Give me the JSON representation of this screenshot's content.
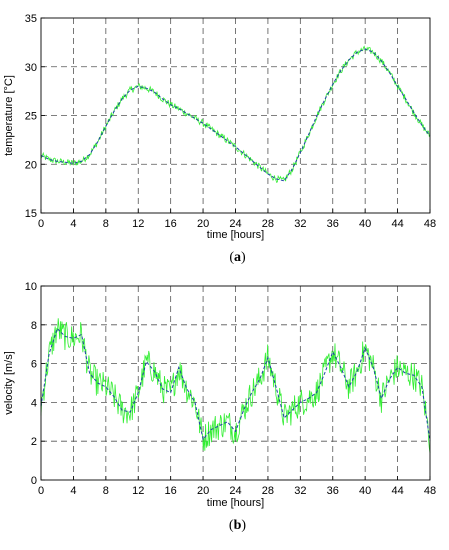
{
  "chart_data": [
    {
      "type": "line",
      "panel_label": "(a)",
      "panel_letter": "a",
      "xlabel": "time [hours]",
      "ylabel": "temperature [°C]",
      "xlim": [
        0,
        48
      ],
      "ylim": [
        15,
        35
      ],
      "xticks": [
        0,
        4,
        8,
        12,
        16,
        20,
        24,
        28,
        32,
        36,
        40,
        44,
        48
      ],
      "yticks": [
        15,
        20,
        25,
        30,
        35
      ],
      "grid": true,
      "series": [
        {
          "color": "#33ee33",
          "style": "noisy measured signal",
          "noise_amplitude": 0.35,
          "x": [
            0,
            1,
            2,
            3,
            4,
            5,
            6,
            7,
            8,
            9,
            10,
            11,
            12,
            13,
            14,
            15,
            16,
            17,
            18,
            19,
            20,
            21,
            22,
            23,
            24,
            25,
            26,
            27,
            28,
            29,
            30,
            31,
            32,
            33,
            34,
            35,
            36,
            37,
            38,
            39,
            40,
            41,
            42,
            43,
            44,
            45,
            46,
            47,
            48
          ],
          "y": [
            20.9,
            20.5,
            20.3,
            20.2,
            20.1,
            20.3,
            21.0,
            22.3,
            23.9,
            25.4,
            26.7,
            27.6,
            28.0,
            27.8,
            27.4,
            26.7,
            26.1,
            25.7,
            25.2,
            24.7,
            24.2,
            23.6,
            23.0,
            22.4,
            21.8,
            21.1,
            20.4,
            19.7,
            19.0,
            18.5,
            18.3,
            19.5,
            21.2,
            23.0,
            24.9,
            26.6,
            28.2,
            29.6,
            30.7,
            31.5,
            31.8,
            31.5,
            30.6,
            29.4,
            28.0,
            26.7,
            25.3,
            24.0,
            22.9
          ]
        },
        {
          "color": "#1f3fa8",
          "style": "smoothed model signal",
          "x": [
            0,
            1,
            2,
            3,
            4,
            5,
            6,
            7,
            8,
            9,
            10,
            11,
            12,
            13,
            14,
            15,
            16,
            17,
            18,
            19,
            20,
            21,
            22,
            23,
            24,
            25,
            26,
            27,
            28,
            29,
            30,
            31,
            32,
            33,
            34,
            35,
            36,
            37,
            38,
            39,
            40,
            41,
            42,
            43,
            44,
            45,
            46,
            47,
            48
          ],
          "y": [
            20.9,
            20.5,
            20.3,
            20.2,
            20.1,
            20.3,
            21.0,
            22.3,
            23.9,
            25.4,
            26.7,
            27.6,
            28.0,
            27.8,
            27.4,
            26.7,
            26.1,
            25.7,
            25.2,
            24.7,
            24.2,
            23.6,
            23.0,
            22.4,
            21.8,
            21.1,
            20.4,
            19.7,
            19.0,
            18.5,
            18.3,
            19.5,
            21.2,
            23.0,
            24.9,
            26.6,
            28.2,
            29.6,
            30.7,
            31.5,
            31.8,
            31.5,
            30.6,
            29.4,
            28.0,
            26.7,
            25.3,
            24.0,
            22.9
          ]
        }
      ]
    },
    {
      "type": "line",
      "panel_label": "(b)",
      "panel_letter": "b",
      "xlabel": "time [hours]",
      "ylabel": "velocity [m/s]",
      "xlim": [
        0,
        48
      ],
      "ylim": [
        0,
        10
      ],
      "xticks": [
        0,
        4,
        8,
        12,
        16,
        20,
        24,
        28,
        32,
        36,
        40,
        44,
        48
      ],
      "yticks": [
        0,
        2,
        4,
        6,
        8,
        10
      ],
      "grid": true,
      "series": [
        {
          "color": "#33ee33",
          "style": "noisy measured signal",
          "noise_amplitude": 0.75,
          "x": [
            0,
            1,
            2,
            3,
            4,
            5,
            6,
            7,
            8,
            9,
            10,
            11,
            12,
            13,
            14,
            15,
            16,
            17,
            18,
            19,
            20,
            21,
            22,
            23,
            24,
            25,
            26,
            27,
            28,
            29,
            30,
            31,
            32,
            33,
            34,
            35,
            36,
            37,
            38,
            39,
            40,
            41,
            42,
            43,
            44,
            45,
            46,
            47,
            48
          ],
          "y": [
            3.8,
            6.5,
            7.8,
            7.4,
            7.3,
            7.5,
            5.5,
            5.0,
            4.8,
            4.3,
            3.6,
            3.5,
            4.5,
            6.1,
            5.6,
            4.7,
            4.5,
            5.8,
            4.7,
            4.0,
            2.1,
            2.6,
            2.8,
            3.0,
            2.5,
            3.6,
            4.5,
            5.2,
            6.3,
            4.8,
            3.2,
            3.6,
            4.0,
            4.2,
            4.5,
            5.5,
            6.6,
            5.8,
            4.8,
            5.6,
            6.8,
            5.8,
            4.2,
            5.2,
            5.8,
            5.5,
            5.4,
            4.8,
            2.0
          ]
        },
        {
          "color": "#1f3fa8",
          "style": "smoothed model signal",
          "x": [
            0,
            1,
            2,
            3,
            4,
            5,
            6,
            7,
            8,
            9,
            10,
            11,
            12,
            13,
            14,
            15,
            16,
            17,
            18,
            19,
            20,
            21,
            22,
            23,
            24,
            25,
            26,
            27,
            28,
            29,
            30,
            31,
            32,
            33,
            34,
            35,
            36,
            37,
            38,
            39,
            40,
            41,
            42,
            43,
            44,
            45,
            46,
            47,
            48
          ],
          "y": [
            3.8,
            6.5,
            7.8,
            7.4,
            7.3,
            7.5,
            5.5,
            5.0,
            4.8,
            4.3,
            3.6,
            3.5,
            4.5,
            6.1,
            5.6,
            4.7,
            4.5,
            5.8,
            4.7,
            4.0,
            2.1,
            2.6,
            2.8,
            3.0,
            2.5,
            3.6,
            4.5,
            5.2,
            6.3,
            4.8,
            3.2,
            3.6,
            4.0,
            4.2,
            4.5,
            5.5,
            6.6,
            5.8,
            4.8,
            5.6,
            6.8,
            5.8,
            4.2,
            5.2,
            5.8,
            5.5,
            5.4,
            4.8,
            2.0
          ]
        }
      ]
    }
  ]
}
